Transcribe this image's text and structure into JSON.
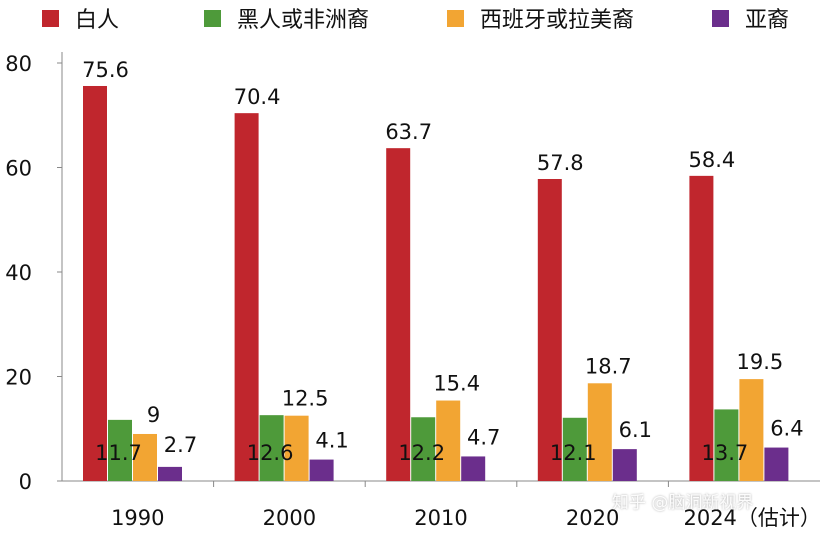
{
  "chart_data": {
    "type": "bar",
    "categories": [
      "1990",
      "2000",
      "2010",
      "2020",
      "2024（估计）"
    ],
    "series": [
      {
        "name": "白人",
        "color": "#C0262D",
        "values": [
          75.6,
          70.4,
          63.7,
          57.8,
          58.4
        ]
      },
      {
        "name": "黑人或非洲裔",
        "color": "#4E9A3A",
        "values": [
          11.7,
          12.6,
          12.2,
          12.1,
          13.7
        ]
      },
      {
        "name": "西班牙或拉美裔",
        "color": "#F2A533",
        "values": [
          9,
          12.5,
          15.4,
          18.7,
          19.5
        ]
      },
      {
        "name": "亚裔",
        "color": "#6B2E8C",
        "values": [
          2.7,
          4.1,
          4.7,
          6.1,
          6.4
        ]
      }
    ],
    "ylim": [
      0,
      80
    ],
    "yticks": [
      "0",
      "20",
      "40",
      "60",
      "80"
    ],
    "grid": false,
    "legend_position": "top"
  },
  "watermark": "知乎 @脑洞新视界"
}
